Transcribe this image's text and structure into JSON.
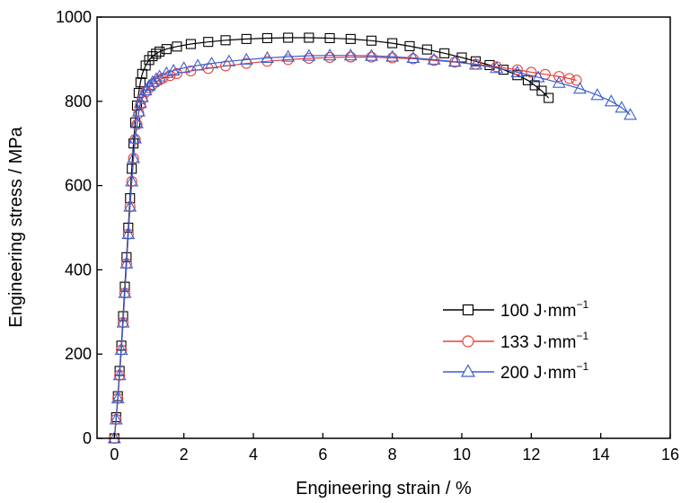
{
  "chart_data": {
    "type": "scatter",
    "xlabel": "Engineering  strain / %",
    "ylabel": "Engineering stress / MPa",
    "xlim": [
      -0.5,
      16
    ],
    "ylim": [
      0,
      1000
    ],
    "xticks": [
      0,
      2,
      4,
      6,
      8,
      10,
      12,
      14,
      16
    ],
    "yticks": [
      0,
      200,
      400,
      600,
      800,
      1000
    ],
    "grid": false,
    "legend_position": "bottom-right",
    "series": [
      {
        "name": "100 J·mm",
        "name_sup": "−1",
        "color": "#000000",
        "marker": "square",
        "x": [
          0,
          0.05,
          0.1,
          0.15,
          0.2,
          0.25,
          0.3,
          0.35,
          0.4,
          0.45,
          0.5,
          0.55,
          0.6,
          0.65,
          0.7,
          0.75,
          0.8,
          0.9,
          1.0,
          1.1,
          1.2,
          1.3,
          1.5,
          1.8,
          2.2,
          2.7,
          3.2,
          3.8,
          4.4,
          5.0,
          5.6,
          6.2,
          6.8,
          7.4,
          8.0,
          8.5,
          9.0,
          9.5,
          10.0,
          10.4,
          10.8,
          11.2,
          11.6,
          11.9,
          12.1,
          12.3,
          12.5
        ],
        "y": [
          0,
          50,
          100,
          160,
          220,
          290,
          360,
          430,
          500,
          570,
          640,
          700,
          750,
          790,
          820,
          845,
          865,
          885,
          898,
          907,
          913,
          918,
          924,
          930,
          936,
          941,
          945,
          948,
          950,
          951,
          951,
          950,
          948,
          944,
          938,
          931,
          923,
          914,
          904,
          895,
          886,
          875,
          862,
          850,
          838,
          825,
          808
        ]
      },
      {
        "name": "133 J·mm",
        "name_sup": "−1",
        "color": "#e8403a",
        "marker": "circle",
        "x": [
          0,
          0.05,
          0.1,
          0.15,
          0.2,
          0.25,
          0.3,
          0.35,
          0.4,
          0.45,
          0.5,
          0.55,
          0.6,
          0.65,
          0.7,
          0.75,
          0.8,
          0.9,
          1.0,
          1.1,
          1.2,
          1.3,
          1.4,
          1.6,
          1.8,
          2.2,
          2.7,
          3.2,
          3.8,
          4.4,
          5.0,
          5.6,
          6.2,
          6.8,
          7.4,
          8.0,
          8.6,
          9.2,
          9.8,
          10.4,
          11.0,
          11.6,
          12.0,
          12.4,
          12.8,
          13.1,
          13.3
        ],
        "y": [
          0,
          45,
          95,
          150,
          210,
          275,
          345,
          415,
          485,
          550,
          610,
          665,
          710,
          745,
          772,
          792,
          806,
          822,
          832,
          840,
          846,
          851,
          855,
          861,
          866,
          872,
          878,
          884,
          890,
          895,
          899,
          902,
          904,
          905,
          905,
          903,
          901,
          897,
          893,
          888,
          882,
          875,
          869,
          864,
          859,
          854,
          850
        ]
      },
      {
        "name": "200 J·mm",
        "name_sup": "−1",
        "color": "#3a5fd0",
        "marker": "triangle",
        "x": [
          0,
          0.05,
          0.1,
          0.15,
          0.2,
          0.25,
          0.3,
          0.35,
          0.4,
          0.45,
          0.5,
          0.55,
          0.6,
          0.65,
          0.7,
          0.75,
          0.8,
          0.9,
          1.0,
          1.1,
          1.2,
          1.3,
          1.5,
          1.7,
          2.0,
          2.4,
          2.8,
          3.3,
          3.8,
          4.4,
          5.0,
          5.6,
          6.2,
          6.8,
          7.4,
          8.0,
          8.6,
          9.2,
          9.8,
          10.4,
          11.0,
          11.6,
          12.2,
          12.8,
          13.4,
          13.9,
          14.3,
          14.6,
          14.85
        ],
        "y": [
          0,
          45,
          95,
          150,
          210,
          275,
          345,
          415,
          485,
          550,
          610,
          665,
          712,
          748,
          776,
          796,
          810,
          826,
          837,
          846,
          853,
          859,
          867,
          873,
          879,
          885,
          890,
          895,
          899,
          903,
          906,
          908,
          909,
          909,
          908,
          906,
          903,
          899,
          894,
          887,
          879,
          869,
          857,
          844,
          830,
          815,
          800,
          785,
          768
        ]
      }
    ]
  }
}
